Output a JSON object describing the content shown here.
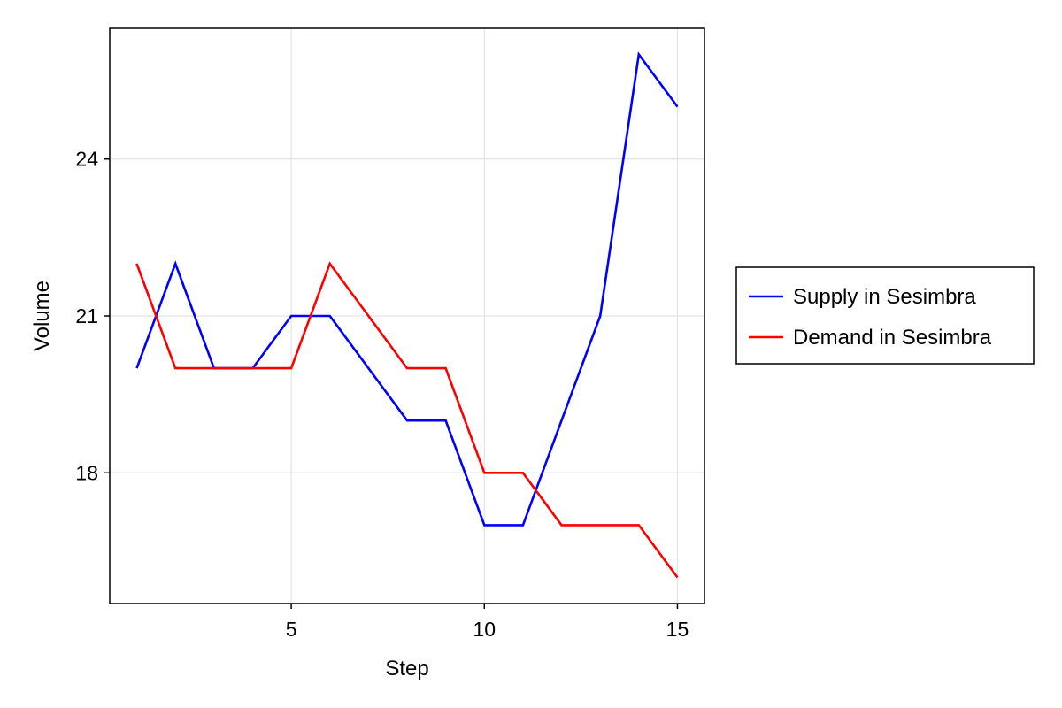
{
  "chart_data": {
    "type": "line",
    "title": "",
    "xlabel": "Step",
    "ylabel": "Volume",
    "x": [
      1,
      2,
      3,
      4,
      5,
      6,
      7,
      8,
      9,
      10,
      11,
      12,
      13,
      14,
      15
    ],
    "xlim": [
      0.3,
      15.7
    ],
    "ylim": [
      15.5,
      26.5
    ],
    "xticks": [
      5,
      10,
      15
    ],
    "yticks": [
      18,
      21,
      24
    ],
    "grid": true,
    "legend_position": "right",
    "series": [
      {
        "name": "Supply in Sesimbra",
        "color": "#0000ff",
        "values": [
          20,
          22,
          20,
          20,
          21,
          21,
          20,
          19,
          19,
          17,
          17,
          19,
          21,
          26,
          25
        ]
      },
      {
        "name": "Demand in Sesimbra",
        "color": "#ff0000",
        "values": [
          22,
          20,
          20,
          20,
          20,
          22,
          21,
          20,
          20,
          18,
          18,
          17,
          17,
          17,
          16
        ]
      }
    ]
  }
}
